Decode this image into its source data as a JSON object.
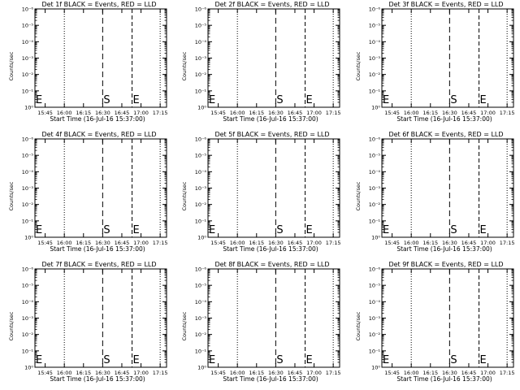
{
  "chart_data": [
    {
      "type": "line",
      "title": "Det 1f BLACK = Events, RED = LLD",
      "xlabel": "Start Time (16-Jul-16 15:37:00)",
      "ylabel": "Counts/sec",
      "x_tick_labels": [
        "15:45",
        "16:00",
        "16:15",
        "16:30",
        "16:45",
        "17:00",
        "17:15"
      ],
      "y_tick_labels": [
        "10⁰",
        "10⁻¹",
        "10⁻²",
        "10⁻³",
        "10⁻⁴",
        "10⁻⁵",
        "10⁻⁶"
      ],
      "markers": [
        {
          "label": "S",
          "x": "16:30"
        },
        {
          "label": "E",
          "x": "16:53"
        },
        {
          "label": "E",
          "x": "15:37"
        }
      ],
      "series": [
        {
          "values": []
        }
      ]
    },
    {
      "type": "line",
      "title": "Det 2f BLACK = Events, RED = LLD",
      "xlabel": "Start Time (16-Jul-16 15:37:00)",
      "ylabel": "Counts/sec",
      "x_tick_labels": [
        "15:45",
        "16:00",
        "16:15",
        "16:30",
        "16:45",
        "17:00",
        "17:15"
      ],
      "y_tick_labels": [
        "10⁰",
        "10⁻¹",
        "10⁻²",
        "10⁻³",
        "10⁻⁴",
        "10⁻⁵",
        "10⁻⁶"
      ],
      "markers": [
        {
          "label": "S",
          "x": "16:30"
        },
        {
          "label": "E",
          "x": "16:53"
        },
        {
          "label": "E",
          "x": "15:37"
        }
      ],
      "series": [
        {
          "values": []
        }
      ]
    },
    {
      "type": "line",
      "title": "Det 3f BLACK = Events, RED = LLD",
      "xlabel": "Start Time (16-Jul-16 15:37:00)",
      "ylabel": "Counts/sec",
      "x_tick_labels": [
        "15:45",
        "16:00",
        "16:15",
        "16:30",
        "16:45",
        "17:00",
        "17:15"
      ],
      "y_tick_labels": [
        "10⁰",
        "10⁻¹",
        "10⁻²",
        "10⁻³",
        "10⁻⁴",
        "10⁻⁵",
        "10⁻⁶"
      ],
      "markers": [
        {
          "label": "S",
          "x": "16:30"
        },
        {
          "label": "E",
          "x": "16:53"
        },
        {
          "label": "E",
          "x": "15:37"
        }
      ],
      "series": [
        {
          "values": []
        }
      ]
    },
    {
      "type": "line",
      "title": "Det 4f BLACK = Events, RED = LLD",
      "xlabel": "Start Time (16-Jul-16 15:37:00)",
      "ylabel": "Counts/sec",
      "x_tick_labels": [
        "15:45",
        "16:00",
        "16:15",
        "16:30",
        "16:45",
        "17:00",
        "17:15"
      ],
      "y_tick_labels": [
        "10⁰",
        "10⁻¹",
        "10⁻²",
        "10⁻³",
        "10⁻⁴",
        "10⁻⁵",
        "10⁻⁶"
      ],
      "markers": [
        {
          "label": "S",
          "x": "16:30"
        },
        {
          "label": "E",
          "x": "16:53"
        },
        {
          "label": "E",
          "x": "15:37"
        }
      ],
      "series": [
        {
          "values": []
        }
      ]
    },
    {
      "type": "line",
      "title": "Det 5f BLACK = Events, RED = LLD",
      "xlabel": "Start Time (16-Jul-16 15:37:00)",
      "ylabel": "Counts/sec",
      "x_tick_labels": [
        "15:45",
        "16:00",
        "16:15",
        "16:30",
        "16:45",
        "17:00",
        "17:15"
      ],
      "y_tick_labels": [
        "10⁰",
        "10⁻¹",
        "10⁻²",
        "10⁻³",
        "10⁻⁴",
        "10⁻⁵",
        "10⁻⁶"
      ],
      "markers": [
        {
          "label": "S",
          "x": "16:30"
        },
        {
          "label": "E",
          "x": "16:53"
        },
        {
          "label": "E",
          "x": "15:37"
        }
      ],
      "series": [
        {
          "values": []
        }
      ]
    },
    {
      "type": "line",
      "title": "Det 6f BLACK = Events, RED = LLD",
      "xlabel": "Start Time (16-Jul-16 15:37:00)",
      "ylabel": "Counts/sec",
      "x_tick_labels": [
        "15:45",
        "16:00",
        "16:15",
        "16:30",
        "16:45",
        "17:00",
        "17:15"
      ],
      "y_tick_labels": [
        "10⁰",
        "10⁻¹",
        "10⁻²",
        "10⁻³",
        "10⁻⁴",
        "10⁻⁵",
        "10⁻⁶"
      ],
      "markers": [
        {
          "label": "S",
          "x": "16:30"
        },
        {
          "label": "E",
          "x": "16:53"
        },
        {
          "label": "E",
          "x": "15:37"
        }
      ],
      "series": [
        {
          "values": []
        }
      ]
    },
    {
      "type": "line",
      "title": "Det 7f BLACK = Events, RED = LLD",
      "xlabel": "Start Time (16-Jul-16 15:37:00)",
      "ylabel": "Counts/sec",
      "x_tick_labels": [
        "15:45",
        "16:00",
        "16:15",
        "16:30",
        "16:45",
        "17:00",
        "17:15"
      ],
      "y_tick_labels": [
        "10⁰",
        "10⁻¹",
        "10⁻²",
        "10⁻³",
        "10⁻⁴",
        "10⁻⁵",
        "10⁻⁶"
      ],
      "markers": [
        {
          "label": "S",
          "x": "16:30"
        },
        {
          "label": "E",
          "x": "16:53"
        },
        {
          "label": "E",
          "x": "15:37"
        }
      ],
      "series": [
        {
          "values": []
        }
      ]
    },
    {
      "type": "line",
      "title": "Det 8f BLACK = Events, RED = LLD",
      "xlabel": "Start Time (16-Jul-16 15:37:00)",
      "ylabel": "Counts/sec",
      "x_tick_labels": [
        "15:45",
        "16:00",
        "16:15",
        "16:30",
        "16:45",
        "17:00",
        "17:15"
      ],
      "y_tick_labels": [
        "10⁰",
        "10⁻¹",
        "10⁻²",
        "10⁻³",
        "10⁻⁴",
        "10⁻⁵",
        "10⁻⁶"
      ],
      "markers": [
        {
          "label": "S",
          "x": "16:30"
        },
        {
          "label": "E",
          "x": "16:53"
        },
        {
          "label": "E",
          "x": "15:37"
        }
      ],
      "series": [
        {
          "values": []
        }
      ]
    },
    {
      "type": "line",
      "title": "Det 9f BLACK = Events, RED = LLD",
      "xlabel": "Start Time (16-Jul-16 15:37:00)",
      "ylabel": "Counts/sec",
      "x_tick_labels": [
        "15:45",
        "16:00",
        "16:15",
        "16:30",
        "16:45",
        "17:00",
        "17:15"
      ],
      "y_tick_labels": [
        "10⁰",
        "10⁻¹",
        "10⁻²",
        "10⁻³",
        "10⁻⁴",
        "10⁻⁵",
        "10⁻⁶"
      ],
      "markers": [
        {
          "label": "S",
          "x": "16:30"
        },
        {
          "label": "E",
          "x": "16:53"
        },
        {
          "label": "E",
          "x": "15:37"
        }
      ],
      "series": [
        {
          "values": []
        }
      ]
    }
  ]
}
